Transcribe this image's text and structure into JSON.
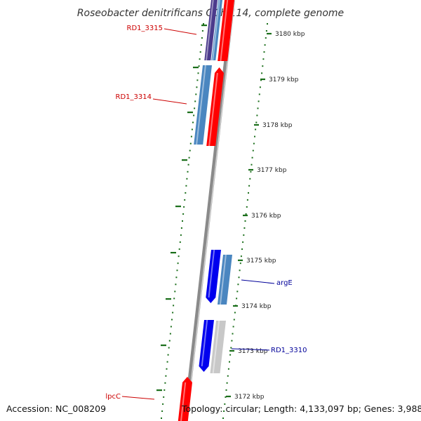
{
  "title": "Roseobacter denitrificans OCh 114, complete genome",
  "footer": {
    "accession": "Accession: NC_008209",
    "topology": "Topology: circular; Length: 4,133,097 bp; Genes: 3,988"
  },
  "colors": {
    "forward_gene": "#ff0000",
    "reverse_gene": "#0000ee",
    "steel_gene": "#4a86c0",
    "purple_gene": "#4b3a8c",
    "grey_gene": "#c8c8c8",
    "backbone": "#8a8a8a",
    "tick_mark": "#1a6e1a",
    "label_red": "#cc0000",
    "label_blue": "#000099"
  },
  "ticks": [
    {
      "label": "3180 kbp"
    },
    {
      "label": "3179 kbp"
    },
    {
      "label": "3178 kbp"
    },
    {
      "label": "3177 kbp"
    },
    {
      "label": "3176 kbp"
    },
    {
      "label": "3175 kbp"
    },
    {
      "label": "3174 kbp"
    },
    {
      "label": "3173 kbp"
    },
    {
      "label": "3172 kbp"
    }
  ],
  "gene_labels": [
    {
      "id": "RD1_3315",
      "text": "RD1_3315",
      "color": "red"
    },
    {
      "id": "RD1_3314",
      "text": "RD1_3314",
      "color": "red"
    },
    {
      "id": "argE",
      "text": "argE",
      "color": "blue"
    },
    {
      "id": "RD1_3310",
      "text": "RD1_3310",
      "color": "blue"
    },
    {
      "id": "lpcC",
      "text": "lpcC",
      "color": "red"
    }
  ]
}
